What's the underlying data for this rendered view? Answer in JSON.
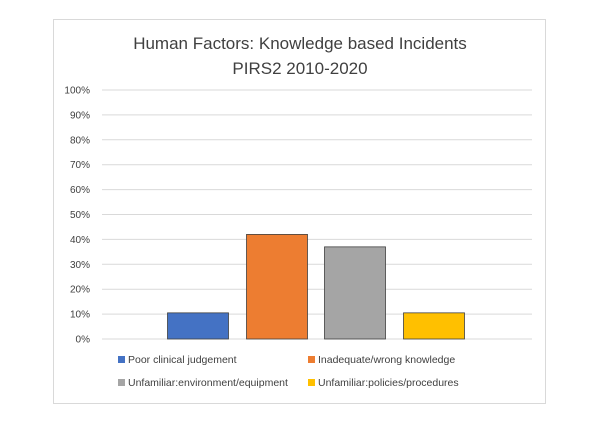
{
  "chart_data": {
    "type": "bar",
    "title": "Human Factors: Knowledge based Incidents",
    "subtitle": "PIRS2 2010-2020",
    "xlabel": "",
    "ylabel": "",
    "ylim": [
      0,
      100
    ],
    "yticks": [
      "0%",
      "10%",
      "20%",
      "30%",
      "40%",
      "50%",
      "60%",
      "70%",
      "80%",
      "90%",
      "100%"
    ],
    "grid": true,
    "legend_position": "bottom",
    "series": [
      {
        "name": "Poor clinical judgement",
        "values": [
          10.5
        ],
        "color": "#4472C4"
      },
      {
        "name": "Inadequate/wrong knowledge",
        "values": [
          42
        ],
        "color": "#ED7D31"
      },
      {
        "name": "Unfamiliar:environment/equipment",
        "values": [
          37
        ],
        "color": "#A5A5A5"
      },
      {
        "name": "Unfamiliar:policies/procedures",
        "values": [
          10.5
        ],
        "color": "#FFC000"
      }
    ]
  }
}
